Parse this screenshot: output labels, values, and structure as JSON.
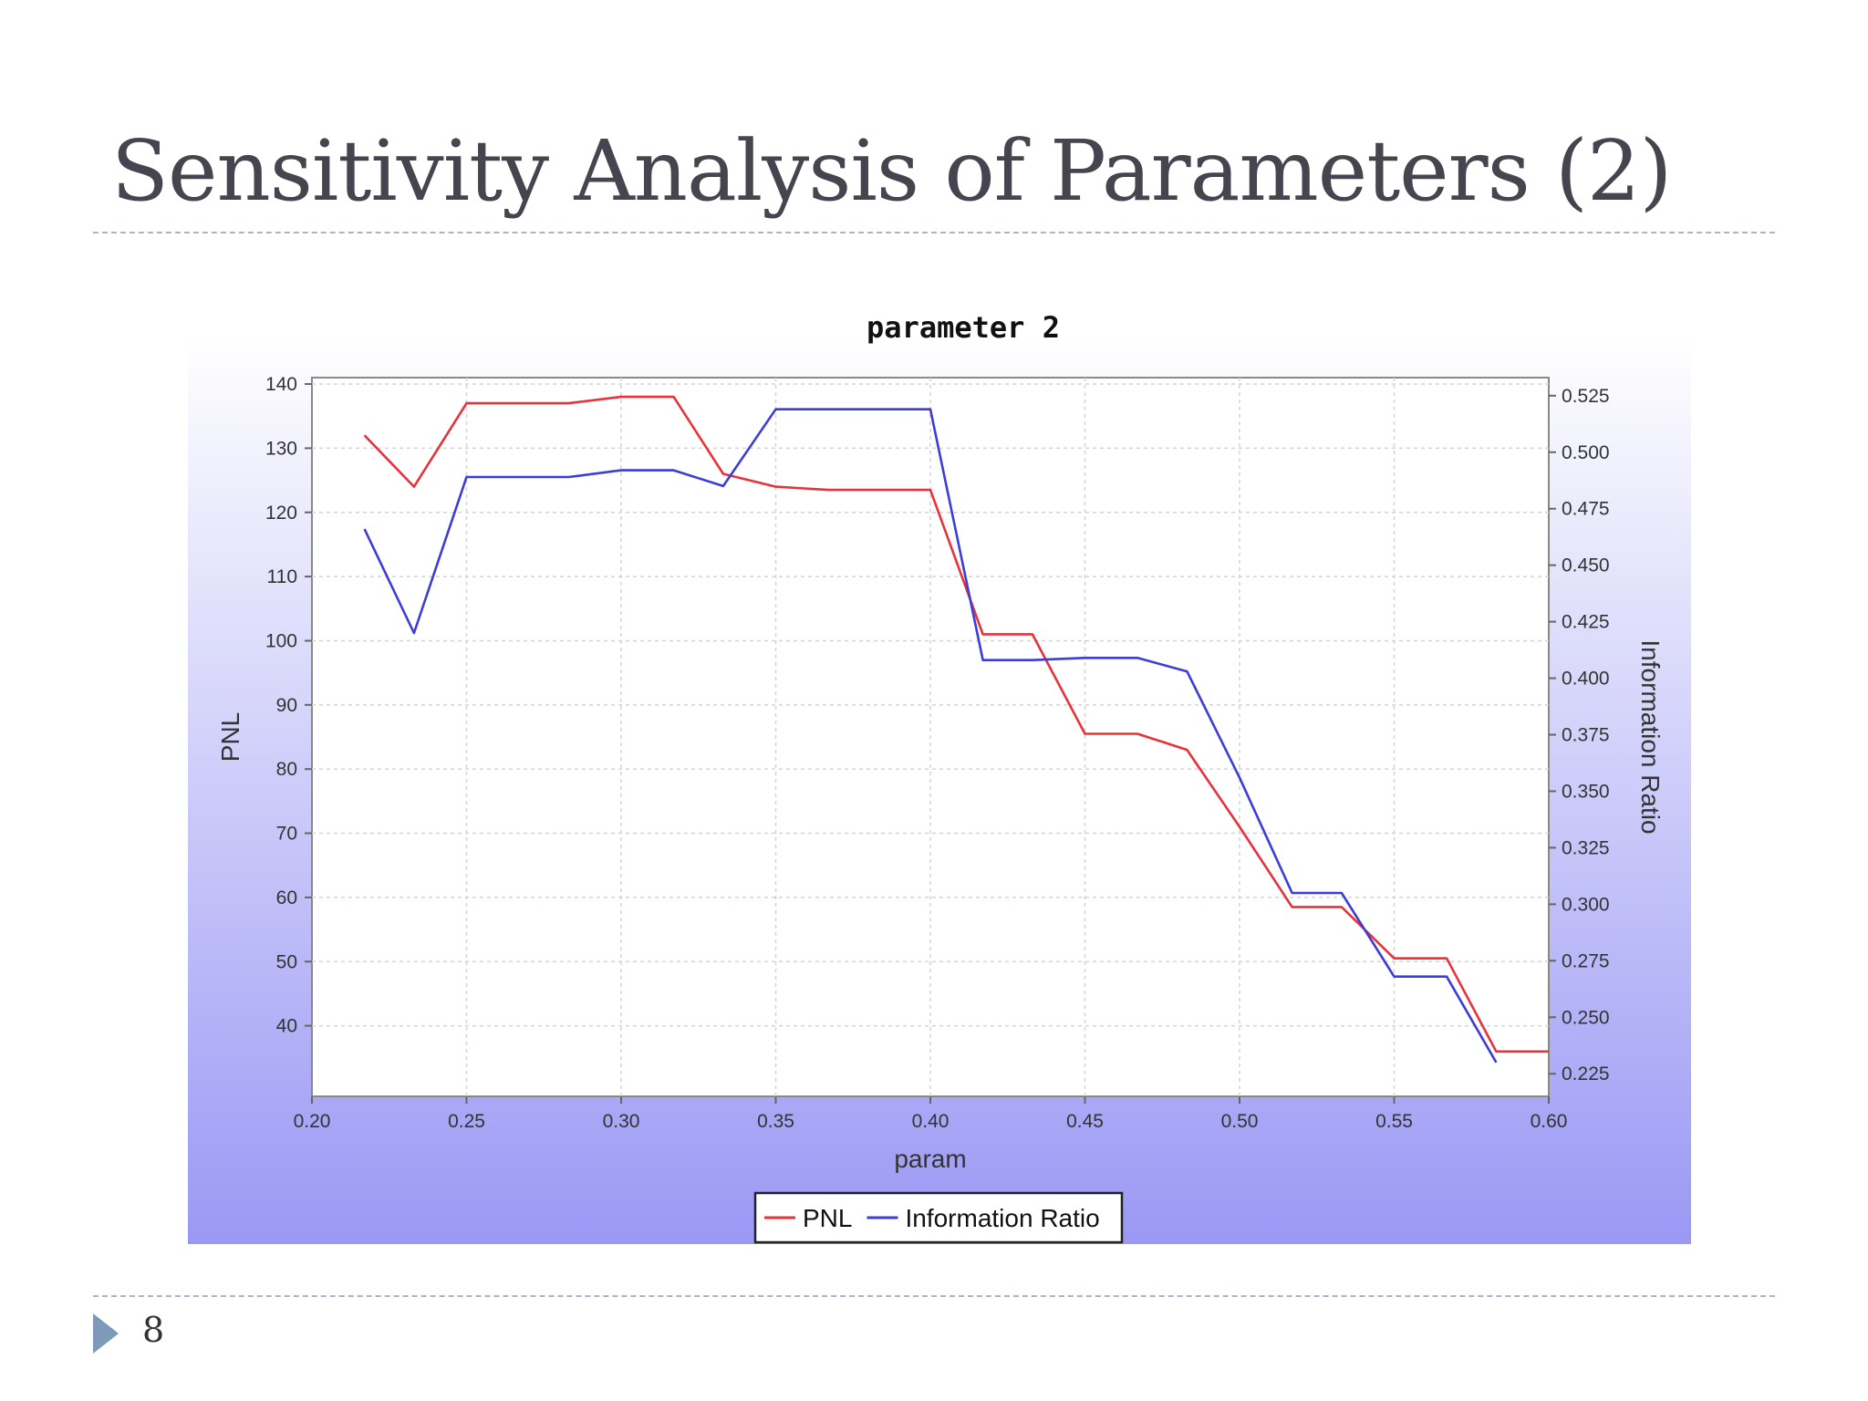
{
  "slide": {
    "title": "Sensitivity Analysis of Parameters (2)",
    "page_number": "8"
  },
  "chart_data": {
    "type": "line",
    "title": "parameter 2",
    "xlabel": "param",
    "ylabel": "PNL",
    "y2label": "Information Ratio",
    "xlim": [
      0.2,
      0.6
    ],
    "ylim": [
      29,
      141
    ],
    "y2lim": [
      0.215,
      0.533
    ],
    "x_ticks": [
      "0.20",
      "0.25",
      "0.30",
      "0.35",
      "0.40",
      "0.45",
      "0.50",
      "0.55",
      "0.60"
    ],
    "y_ticks": [
      "40",
      "50",
      "60",
      "70",
      "80",
      "90",
      "100",
      "110",
      "120",
      "130",
      "140"
    ],
    "y2_ticks": [
      "0.225",
      "0.250",
      "0.275",
      "0.300",
      "0.325",
      "0.350",
      "0.375",
      "0.400",
      "0.425",
      "0.450",
      "0.475",
      "0.500",
      "0.525"
    ],
    "grid": true,
    "legend_position": "bottom",
    "background": "gradient white to lavender",
    "series": [
      {
        "name": "PNL",
        "axis": "left",
        "color": "#e8323a",
        "x": [
          0.217,
          0.233,
          0.25,
          0.267,
          0.283,
          0.3,
          0.317,
          0.333,
          0.35,
          0.367,
          0.383,
          0.4,
          0.417,
          0.433,
          0.45,
          0.467,
          0.483,
          0.5,
          0.517,
          0.533,
          0.55,
          0.567,
          0.583,
          0.6
        ],
        "values": [
          132,
          124,
          137,
          137,
          137,
          138,
          138,
          126,
          124,
          123.5,
          123.5,
          123.5,
          101,
          101,
          85.5,
          85.5,
          83,
          71,
          58.5,
          58.5,
          50.5,
          50.5,
          36,
          36
        ]
      },
      {
        "name": "Information Ratio",
        "axis": "right",
        "color": "#3c3cd8",
        "x": [
          0.217,
          0.233,
          0.25,
          0.267,
          0.283,
          0.3,
          0.317,
          0.333,
          0.35,
          0.367,
          0.383,
          0.4,
          0.417,
          0.433,
          0.45,
          0.467,
          0.483,
          0.5,
          0.517,
          0.533,
          0.55,
          0.567,
          0.583
        ],
        "values": [
          0.466,
          0.42,
          0.489,
          0.489,
          0.489,
          0.492,
          0.492,
          0.485,
          0.519,
          0.519,
          0.519,
          0.519,
          0.408,
          0.408,
          0.409,
          0.409,
          0.403,
          0.356,
          0.305,
          0.305,
          0.268,
          0.268,
          0.23
        ]
      }
    ]
  }
}
